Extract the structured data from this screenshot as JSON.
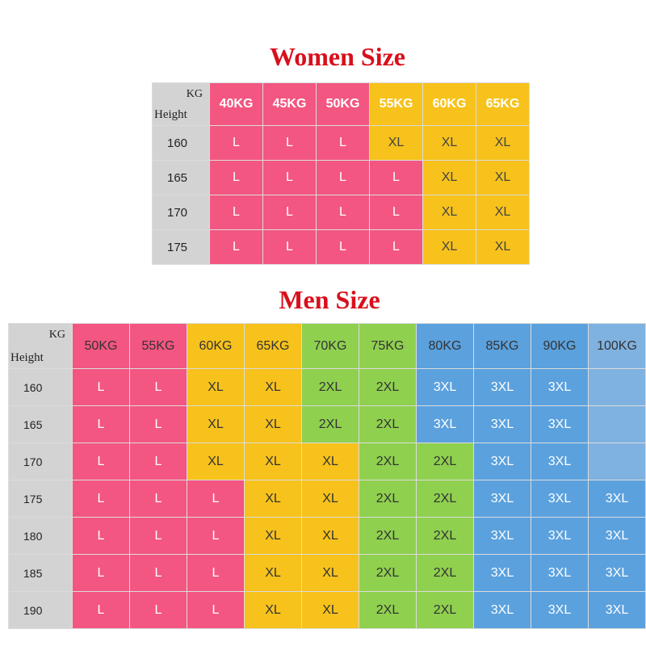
{
  "women": {
    "title": "Women Size",
    "corner_kg": "KG",
    "corner_height": "Height",
    "columns": [
      "40KG",
      "45KG",
      "50KG",
      "55KG",
      "60KG",
      "65KG"
    ],
    "rows": [
      {
        "height": "160",
        "sizes": [
          "L",
          "L",
          "L",
          "XL",
          "XL",
          "XL"
        ]
      },
      {
        "height": "165",
        "sizes": [
          "L",
          "L",
          "L",
          "L",
          "XL",
          "XL"
        ]
      },
      {
        "height": "170",
        "sizes": [
          "L",
          "L",
          "L",
          "L",
          "XL",
          "XL"
        ]
      },
      {
        "height": "175",
        "sizes": [
          "L",
          "L",
          "L",
          "L",
          "XL",
          "XL"
        ]
      }
    ],
    "colors": {
      "pink": "#f35681",
      "yellow": "#f7c21b"
    }
  },
  "men": {
    "title": "Men Size",
    "corner_kg": "KG",
    "corner_height": "Height",
    "columns": [
      "50KG",
      "55KG",
      "60KG",
      "65KG",
      "70KG",
      "75KG",
      "80KG",
      "85KG",
      "90KG",
      "100KG"
    ],
    "rows": [
      {
        "height": "160",
        "sizes": [
          "L",
          "L",
          "XL",
          "XL",
          "2XL",
          "2XL",
          "3XL",
          "3XL",
          "3XL",
          ""
        ]
      },
      {
        "height": "165",
        "sizes": [
          "L",
          "L",
          "XL",
          "XL",
          "2XL",
          "2XL",
          "3XL",
          "3XL",
          "3XL",
          ""
        ]
      },
      {
        "height": "170",
        "sizes": [
          "L",
          "L",
          "XL",
          "XL",
          "XL",
          "2XL",
          "2XL",
          "3XL",
          "3XL",
          ""
        ]
      },
      {
        "height": "175",
        "sizes": [
          "L",
          "L",
          "L",
          "XL",
          "XL",
          "2XL",
          "2XL",
          "3XL",
          "3XL",
          "3XL"
        ]
      },
      {
        "height": "180",
        "sizes": [
          "L",
          "L",
          "L",
          "XL",
          "XL",
          "2XL",
          "2XL",
          "3XL",
          "3XL",
          "3XL"
        ]
      },
      {
        "height": "185",
        "sizes": [
          "L",
          "L",
          "L",
          "XL",
          "XL",
          "2XL",
          "2XL",
          "3XL",
          "3XL",
          "3XL"
        ]
      },
      {
        "height": "190",
        "sizes": [
          "L",
          "L",
          "L",
          "XL",
          "XL",
          "2XL",
          "2XL",
          "3XL",
          "3XL",
          "3XL"
        ]
      }
    ],
    "colors": {
      "pink": "#f35681",
      "yellow": "#f7c21b",
      "green": "#8fd04f",
      "blue": "#5ba1de",
      "lightblue": "#7fb2e0"
    }
  }
}
